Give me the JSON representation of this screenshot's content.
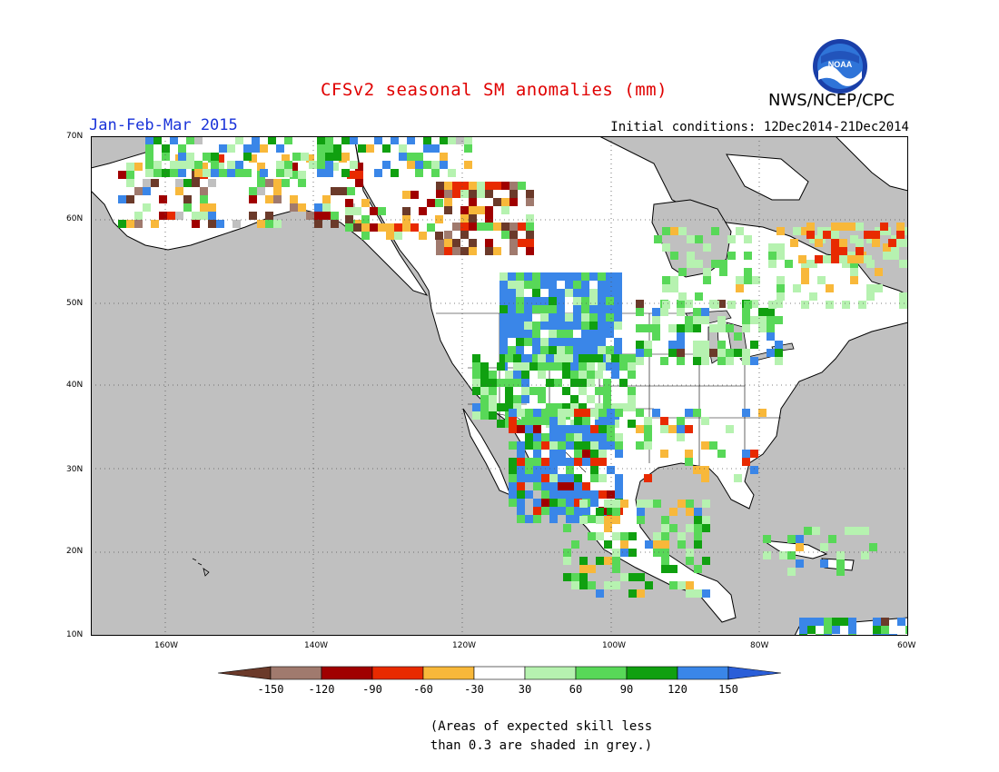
{
  "title": "CFSv2 seasonal SM anomalies (mm)",
  "organization": "NWS/NCEP/CPC",
  "logo_text": "NOAA",
  "period": "Jan-Feb-Mar 2015",
  "initial_conditions": "Initial conditions: 12Dec2014-21Dec2014",
  "lat_labels": [
    "70N",
    "60N",
    "50N",
    "40N",
    "30N",
    "20N",
    "10N"
  ],
  "lon_labels": [
    "160W",
    "140W",
    "120W",
    "100W",
    "80W",
    "60W"
  ],
  "colorbar": {
    "ticks": [
      "-150",
      "-120",
      "-90",
      "-60",
      "-30",
      "30",
      "60",
      "90",
      "120",
      "150"
    ],
    "colors": [
      "#6b3a2a",
      "#a07a6e",
      "#a00000",
      "#e82a00",
      "#f8b83a",
      "#ffffff",
      "#b6f2b0",
      "#58d858",
      "#10a010",
      "#3a86e8"
    ],
    "under_color": "#6b3a2a",
    "over_color": "#2a5ed8"
  },
  "note_line1": "(Areas of expected skill less",
  "note_line2": "than 0.3 are shaded in grey.)",
  "colors": {
    "grey_mask": "#c0c0c0",
    "white": "#ffffff",
    "title": "#e00000",
    "period": "#1a33d9"
  }
}
